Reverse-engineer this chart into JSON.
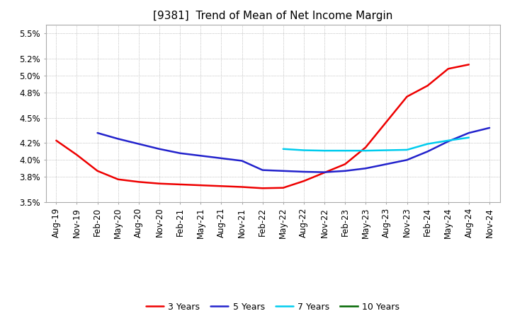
{
  "title": "[9381]  Trend of Mean of Net Income Margin",
  "background_color": "#ffffff",
  "ylim": [
    0.035,
    0.056
  ],
  "yticks": [
    0.035,
    0.038,
    0.04,
    0.042,
    0.045,
    0.048,
    0.05,
    0.052,
    0.055
  ],
  "ytick_labels": [
    "3.5%",
    "3.8%",
    "4.0%",
    "4.2%",
    "4.5%",
    "4.8%",
    "5.0%",
    "5.2%",
    "5.5%"
  ],
  "xtick_labels": [
    "Aug-19",
    "Nov-19",
    "Feb-20",
    "May-20",
    "Aug-20",
    "Nov-20",
    "Feb-21",
    "May-21",
    "Aug-21",
    "Nov-21",
    "Feb-22",
    "May-22",
    "Aug-22",
    "Nov-22",
    "Feb-23",
    "May-23",
    "Aug-23",
    "Nov-23",
    "Feb-24",
    "May-24",
    "Aug-24",
    "Nov-24"
  ],
  "series_3yr": {
    "label": "3 Years",
    "color": "#ee0000",
    "x_indices": [
      0,
      1,
      2,
      3,
      4,
      5,
      6,
      7,
      8,
      9,
      10,
      11,
      12,
      13,
      14,
      15,
      16,
      17,
      18,
      19,
      20
    ],
    "values": [
      0.0423,
      0.0406,
      0.0387,
      0.0377,
      0.0374,
      0.0372,
      0.0371,
      0.037,
      0.0369,
      0.0368,
      0.03665,
      0.0367,
      0.0375,
      0.0385,
      0.0395,
      0.0415,
      0.0445,
      0.0475,
      0.0488,
      0.0508,
      0.0513
    ]
  },
  "series_5yr": {
    "label": "5 Years",
    "color": "#2222cc",
    "x_indices": [
      2,
      3,
      4,
      5,
      6,
      7,
      8,
      9,
      10,
      11,
      12,
      13,
      14,
      15,
      16,
      17,
      18,
      19,
      20,
      21
    ],
    "values": [
      0.0432,
      0.0425,
      0.0419,
      0.0413,
      0.0408,
      0.0405,
      0.0402,
      0.0399,
      0.0388,
      0.0387,
      0.0386,
      0.03855,
      0.0387,
      0.039,
      0.0395,
      0.04,
      0.041,
      0.0422,
      0.0432,
      0.0438
    ]
  },
  "series_7yr": {
    "label": "7 Years",
    "color": "#00ccee",
    "x_indices": [
      11,
      12,
      13,
      14,
      15,
      16,
      17,
      18,
      19,
      20
    ],
    "values": [
      0.0413,
      0.04115,
      0.0411,
      0.0411,
      0.0411,
      0.04115,
      0.0412,
      0.0419,
      0.0423,
      0.04265
    ]
  },
  "series_10yr": {
    "label": "10 Years",
    "color": "#006600",
    "x_indices": [],
    "values": []
  },
  "grid_color": "#999999",
  "spine_color": "#aaaaaa",
  "title_fontsize": 11,
  "tick_fontsize": 8.5,
  "legend_fontsize": 9,
  "linewidth": 1.8
}
